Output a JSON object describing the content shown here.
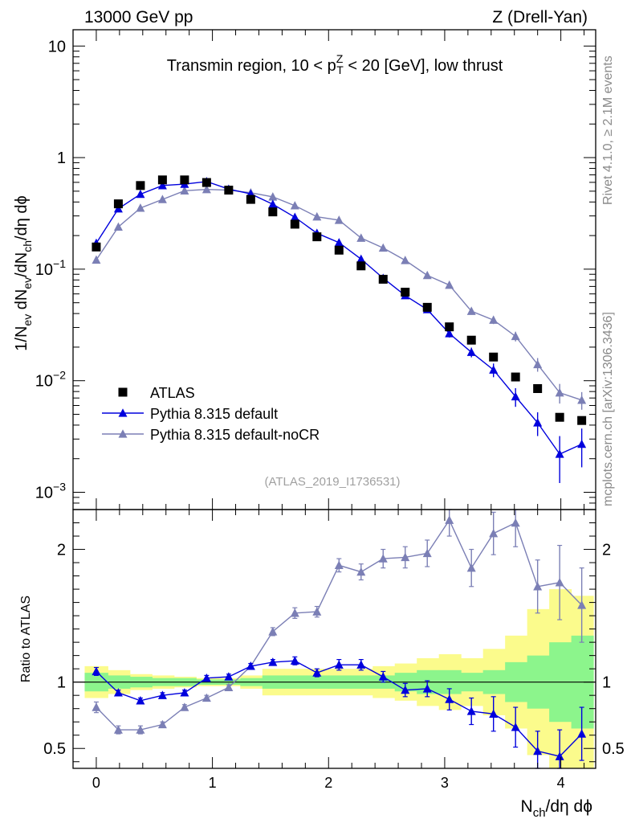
{
  "header": {
    "left": "13000 GeV pp",
    "right": "Z (Drell-Yan)"
  },
  "side_labels": {
    "rivet": "Rivet 4.1.0, ≥ 2.1M events",
    "mcplots": "mcplots.cern.ch [arXiv:1306.3436]"
  },
  "chart_data": {
    "type": "scatter",
    "title": "Transmin region, 10 < p_T^Z < 20 [GeV], low thrust",
    "title_parts": {
      "pre": "Transmin region, 10 < p",
      "sub": "T",
      "sup": "Z",
      "post": " < 20 [GeV], low thrust"
    },
    "xlabel": "N_ch/dη dϕ",
    "xlabel_parts": {
      "n": "N",
      "sub": "ch",
      "rest": "/dη dϕ"
    },
    "ylabel": "1/N_ev dN_ev/dN_ch/dη dϕ",
    "ylabel_parts": [
      {
        "t": "1/N",
        "k": "n"
      },
      {
        "t": "ev",
        "k": "s"
      },
      {
        "t": " dN",
        "k": "n"
      },
      {
        "t": "ev",
        "k": "s"
      },
      {
        "t": "/dN",
        "k": "n"
      },
      {
        "t": "ch",
        "k": "s"
      },
      {
        "t": "/dη dϕ",
        "k": "n"
      }
    ],
    "ratio_ylabel": "Ratio to ATLAS",
    "watermark": "(ATLAS_2019_I1736531)",
    "xlim": [
      -0.2,
      4.3
    ],
    "ylim": [
      0.0007,
      14
    ],
    "yscale": "log",
    "ratio_ylim": [
      0.35,
      2.3
    ],
    "x_ticks": [
      "0",
      "1",
      "2",
      "3",
      "4"
    ],
    "y_ticks": [
      {
        "value": 10,
        "base": "10",
        "exp": ""
      },
      {
        "value": 1,
        "base": "1",
        "exp": ""
      },
      {
        "value": 0.1,
        "base": "10",
        "exp": "−1"
      },
      {
        "value": 0.01,
        "base": "10",
        "exp": "−2"
      },
      {
        "value": 0.001,
        "base": "10",
        "exp": "−3"
      }
    ],
    "ratio_ticks": [
      "0.5",
      "1",
      "2"
    ],
    "x": [
      0.0,
      0.19,
      0.38,
      0.57,
      0.76,
      0.95,
      1.14,
      1.33,
      1.52,
      1.71,
      1.9,
      2.09,
      2.28,
      2.47,
      2.66,
      2.85,
      3.04,
      3.23,
      3.42,
      3.61,
      3.8,
      3.99,
      4.18
    ],
    "bin_edges": [
      -0.1,
      0.1,
      0.29,
      0.48,
      0.67,
      0.86,
      1.05,
      1.24,
      1.43,
      1.62,
      1.81,
      2.0,
      2.19,
      2.38,
      2.57,
      2.76,
      2.95,
      3.14,
      3.33,
      3.52,
      3.71,
      3.9,
      4.09,
      4.28
    ],
    "band_green_halfwidth": [
      0.07,
      0.05,
      0.04,
      0.03,
      0.03,
      0.02,
      0.02,
      0.03,
      0.05,
      0.05,
      0.05,
      0.05,
      0.05,
      0.05,
      0.07,
      0.09,
      0.09,
      0.07,
      0.09,
      0.15,
      0.2,
      0.3,
      0.35
    ],
    "band_yellow_halfwidth": [
      0.12,
      0.09,
      0.06,
      0.05,
      0.04,
      0.03,
      0.03,
      0.05,
      0.1,
      0.1,
      0.1,
      0.1,
      0.1,
      0.12,
      0.14,
      0.18,
      0.21,
      0.18,
      0.25,
      0.35,
      0.55,
      0.7,
      0.65
    ],
    "series": [
      {
        "name": "ATLAS",
        "marker": "square",
        "color": "#000000",
        "values": [
          0.158,
          0.385,
          0.562,
          0.631,
          0.631,
          0.598,
          0.511,
          0.422,
          0.326,
          0.253,
          0.195,
          0.148,
          0.107,
          0.0812,
          0.0622,
          0.0455,
          0.0304,
          0.0231,
          0.0163,
          0.0108,
          0.0085,
          0.0047,
          0.0044
        ]
      },
      {
        "name": "Pythia 8.315 default",
        "marker": "triangle",
        "color": "#0000dd",
        "values": [
          0.171,
          0.348,
          0.47,
          0.562,
          0.578,
          0.61,
          0.522,
          0.473,
          0.382,
          0.292,
          0.21,
          0.173,
          0.123,
          0.083,
          0.058,
          0.0435,
          0.0265,
          0.018,
          0.0125,
          0.0072,
          0.0042,
          0.0022,
          0.0027
        ],
        "values_err_rel": [
          0.03,
          0.02,
          0.02,
          0.02,
          0.02,
          0.02,
          0.02,
          0.02,
          0.02,
          0.02,
          0.03,
          0.03,
          0.03,
          0.04,
          0.05,
          0.06,
          0.08,
          0.1,
          0.14,
          0.19,
          0.24,
          0.45,
          0.38
        ],
        "ratio": [
          1.08,
          0.92,
          0.86,
          0.9,
          0.92,
          1.03,
          1.04,
          1.12,
          1.15,
          1.16,
          1.07,
          1.13,
          1.13,
          1.04,
          0.94,
          0.95,
          0.87,
          0.78,
          0.76,
          0.66,
          0.48,
          0.44,
          0.61
        ],
        "ratio_err": [
          0.03,
          0.02,
          0.02,
          0.02,
          0.02,
          0.02,
          0.02,
          0.02,
          0.02,
          0.03,
          0.03,
          0.04,
          0.04,
          0.04,
          0.05,
          0.06,
          0.08,
          0.1,
          0.13,
          0.15,
          0.15,
          0.2,
          0.2
        ]
      },
      {
        "name": "Pythia 8.315 default-noCR",
        "marker": "triangle",
        "color": "#7b7fb5",
        "values": [
          0.121,
          0.239,
          0.353,
          0.422,
          0.505,
          0.518,
          0.511,
          0.484,
          0.445,
          0.371,
          0.295,
          0.275,
          0.19,
          0.155,
          0.12,
          0.088,
          0.072,
          0.042,
          0.035,
          0.025,
          0.014,
          0.0078,
          0.0067
        ],
        "values_err_rel": [
          0.03,
          0.02,
          0.02,
          0.02,
          0.02,
          0.02,
          0.02,
          0.02,
          0.02,
          0.02,
          0.02,
          0.02,
          0.03,
          0.03,
          0.03,
          0.04,
          0.05,
          0.06,
          0.08,
          0.1,
          0.14,
          0.2,
          0.18
        ],
        "ratio": [
          0.81,
          0.64,
          0.64,
          0.68,
          0.81,
          0.88,
          0.96,
          1.12,
          1.38,
          1.52,
          1.53,
          1.88,
          1.83,
          1.93,
          1.94,
          1.97,
          2.22,
          1.86,
          2.12,
          2.2,
          1.72,
          1.75,
          1.58
        ],
        "ratio_err": [
          0.04,
          0.03,
          0.03,
          0.02,
          0.02,
          0.02,
          0.02,
          0.02,
          0.03,
          0.04,
          0.04,
          0.05,
          0.06,
          0.07,
          0.08,
          0.1,
          0.12,
          0.14,
          0.16,
          0.18,
          0.2,
          0.28,
          0.28
        ]
      }
    ],
    "legend_position": "lower-left"
  }
}
